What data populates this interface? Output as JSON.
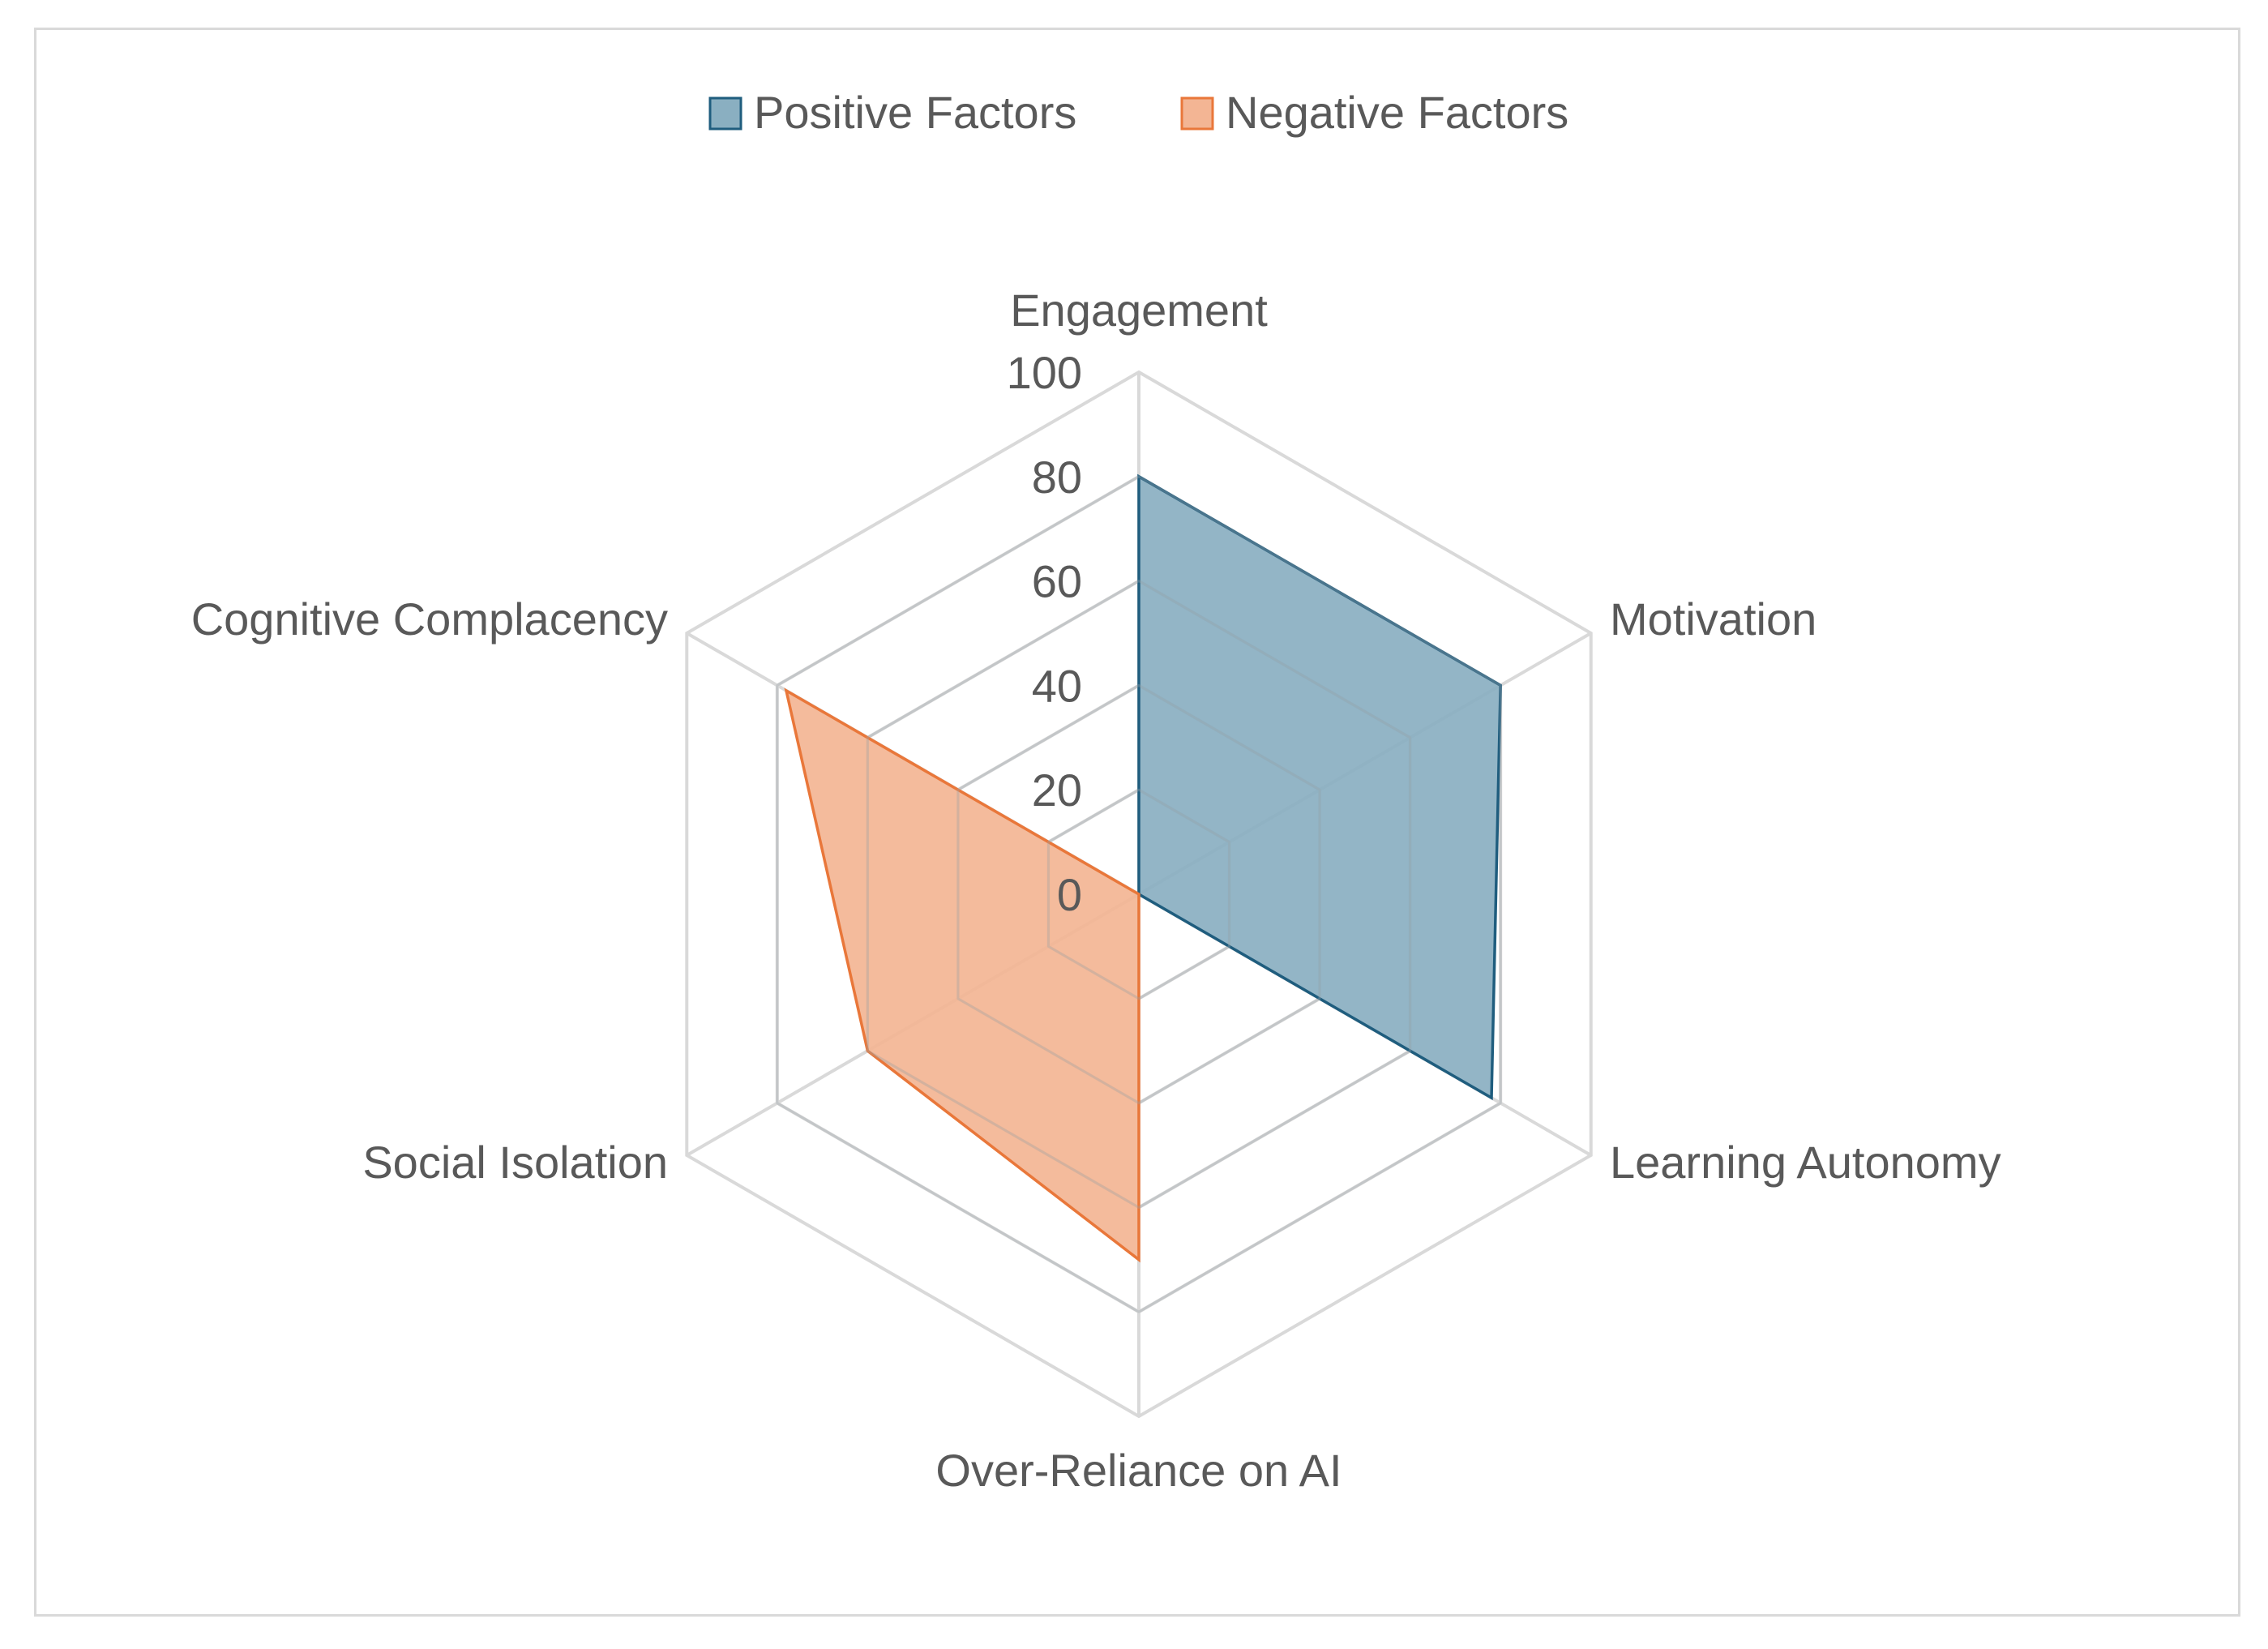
{
  "chart_data": {
    "type": "radar",
    "title": "",
    "categories": [
      "Engagement",
      "Motivation",
      "Learning Autonomy",
      "Over-Reliance on AI",
      "Social Isolation",
      "Cognitive Complacency"
    ],
    "series": [
      {
        "name": "Positive Factors",
        "values": [
          80,
          80,
          78,
          0,
          0,
          0
        ],
        "fill": "#8aafc1",
        "stroke": "#1f5d7e"
      },
      {
        "name": "Negative Factors",
        "values": [
          0,
          0,
          0,
          70,
          60,
          78
        ],
        "fill": "#f3b594",
        "stroke": "#e9773a"
      }
    ],
    "rlim": [
      0,
      100
    ],
    "ticks": [
      0,
      20,
      40,
      60,
      80,
      100
    ],
    "legend_position": "top",
    "grid": true,
    "grid_color": "#d9d9d9"
  }
}
